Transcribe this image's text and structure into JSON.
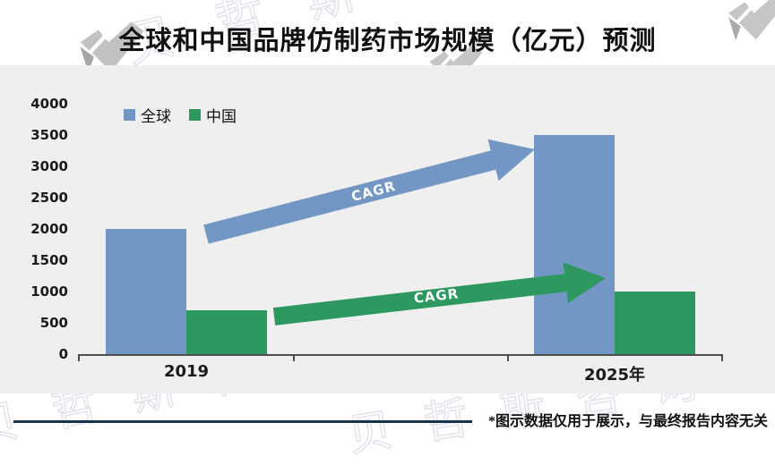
{
  "page": {
    "title": "全球和中国品牌仿制药市场规模（亿元）预测",
    "footer_note": "*图示数据仅用于展示，与最终报告内容无关",
    "watermark_text": "贝哲斯咨询"
  },
  "chart_data": {
    "type": "bar",
    "title": "全球和中国品牌仿制药市场规模（亿元）预测",
    "unit": "亿元",
    "categories": [
      "2019",
      "2025年"
    ],
    "series": [
      {
        "name": "全球",
        "color": "#7397C4",
        "values": [
          2000,
          3500
        ]
      },
      {
        "name": "中国",
        "color": "#2D9960",
        "values": [
          700,
          1000
        ]
      }
    ],
    "ylim": [
      0,
      4000
    ],
    "ytick_step": 500,
    "grid": false,
    "legend_position": "top-left",
    "plot_background": "#efefef",
    "annotations": [
      {
        "label": "CAGR",
        "series": "全球",
        "color": "#7397C4"
      },
      {
        "label": "CAGR",
        "series": "中国",
        "color": "#2D9960"
      }
    ]
  }
}
